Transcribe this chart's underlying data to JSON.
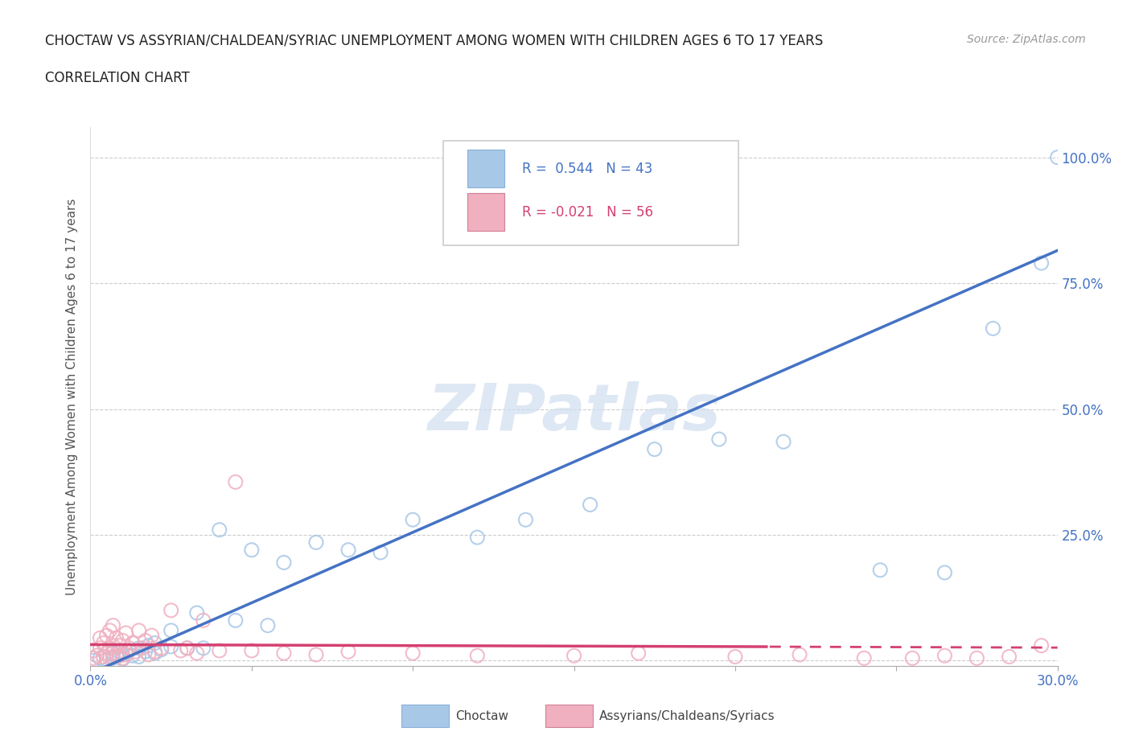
{
  "title_line1": "CHOCTAW VS ASSYRIAN/CHALDEAN/SYRIAC UNEMPLOYMENT AMONG WOMEN WITH CHILDREN AGES 6 TO 17 YEARS",
  "title_line2": "CORRELATION CHART",
  "source_text": "Source: ZipAtlas.com",
  "ylabel": "Unemployment Among Women with Children Ages 6 to 17 years",
  "xlim": [
    0.0,
    0.3
  ],
  "ylim": [
    -0.01,
    1.06
  ],
  "xticks": [
    0.0,
    0.05,
    0.1,
    0.15,
    0.2,
    0.25,
    0.3
  ],
  "xtick_labels": [
    "0.0%",
    "",
    "",
    "",
    "",
    "",
    "30.0%"
  ],
  "yticks": [
    0.0,
    0.25,
    0.5,
    0.75,
    1.0
  ],
  "ytick_labels_right": [
    "",
    "25.0%",
    "50.0%",
    "75.0%",
    "100.0%"
  ],
  "choctaw_R": "0.544",
  "choctaw_N": "43",
  "assyrian_R": "-0.021",
  "assyrian_N": "56",
  "choctaw_scatter_color": "#a8c8e8",
  "choctaw_line_color": "#4472c4",
  "assyrian_scatter_color": "#f0b0c0",
  "assyrian_line_color": "#d44070",
  "choctaw_x": [
    0.001,
    0.003,
    0.005,
    0.007,
    0.007,
    0.008,
    0.009,
    0.01,
    0.01,
    0.012,
    0.013,
    0.015,
    0.015,
    0.017,
    0.018,
    0.02,
    0.02,
    0.022,
    0.025,
    0.025,
    0.03,
    0.033,
    0.035,
    0.04,
    0.045,
    0.05,
    0.055,
    0.06,
    0.07,
    0.08,
    0.09,
    0.1,
    0.12,
    0.135,
    0.155,
    0.175,
    0.195,
    0.215,
    0.245,
    0.265,
    0.28,
    0.295,
    0.3
  ],
  "choctaw_y": [
    0.0,
    0.005,
    0.002,
    0.015,
    0.005,
    0.008,
    0.018,
    0.003,
    0.012,
    0.02,
    0.01,
    0.025,
    0.008,
    0.018,
    0.03,
    0.015,
    0.035,
    0.022,
    0.028,
    0.06,
    0.025,
    0.095,
    0.025,
    0.26,
    0.08,
    0.22,
    0.07,
    0.195,
    0.235,
    0.22,
    0.215,
    0.28,
    0.245,
    0.28,
    0.31,
    0.42,
    0.44,
    0.435,
    0.18,
    0.175,
    0.66,
    0.79,
    1.0
  ],
  "assyrian_x": [
    0.001,
    0.001,
    0.002,
    0.003,
    0.003,
    0.004,
    0.004,
    0.005,
    0.005,
    0.006,
    0.006,
    0.006,
    0.007,
    0.007,
    0.007,
    0.008,
    0.008,
    0.009,
    0.009,
    0.01,
    0.01,
    0.011,
    0.011,
    0.012,
    0.013,
    0.014,
    0.015,
    0.016,
    0.017,
    0.018,
    0.019,
    0.02,
    0.022,
    0.025,
    0.028,
    0.03,
    0.033,
    0.035,
    0.04,
    0.045,
    0.05,
    0.06,
    0.07,
    0.08,
    0.1,
    0.12,
    0.15,
    0.17,
    0.2,
    0.22,
    0.24,
    0.255,
    0.265,
    0.275,
    0.285,
    0.295
  ],
  "assyrian_y": [
    0.005,
    0.02,
    0.01,
    0.025,
    0.045,
    0.008,
    0.035,
    0.015,
    0.05,
    0.005,
    0.025,
    0.06,
    0.008,
    0.03,
    0.07,
    0.012,
    0.045,
    0.01,
    0.03,
    0.005,
    0.04,
    0.012,
    0.055,
    0.025,
    0.035,
    0.018,
    0.06,
    0.025,
    0.04,
    0.012,
    0.05,
    0.018,
    0.025,
    0.1,
    0.02,
    0.025,
    0.015,
    0.08,
    0.02,
    0.355,
    0.02,
    0.015,
    0.012,
    0.018,
    0.015,
    0.01,
    0.01,
    0.015,
    0.008,
    0.012,
    0.005,
    0.005,
    0.01,
    0.005,
    0.008,
    0.03
  ],
  "choctaw_reg_slope": 2.8,
  "choctaw_reg_intercept": -0.025,
  "assyrian_reg_slope": -0.02,
  "assyrian_reg_intercept": 0.032
}
